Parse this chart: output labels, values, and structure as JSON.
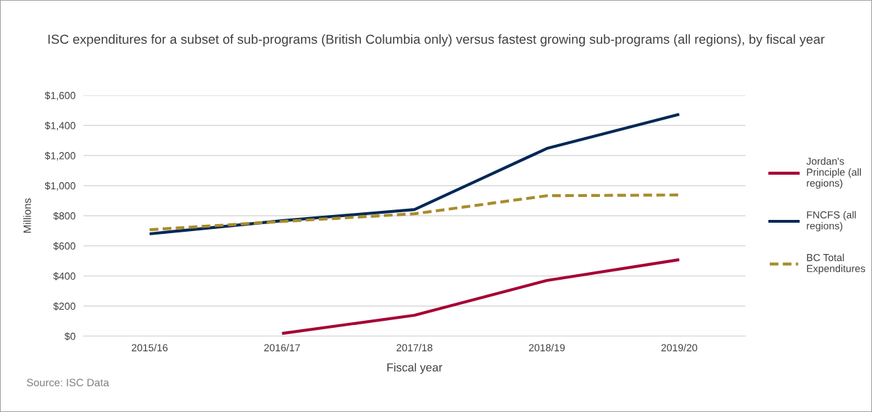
{
  "chart_data": {
    "type": "line",
    "title": "ISC expenditures for a subset of sub-programs (British Columbia only) versus fastest growing sub-programs (all regions), by fiscal year",
    "xlabel": "Fiscal year",
    "ylabel": "Millions",
    "annotations": [
      "Source: ISC Data"
    ],
    "categories": [
      "2015/16",
      "2016/17",
      "2017/18",
      "2018/19",
      "2019/20"
    ],
    "series": [
      {
        "name": "Jordan's Principle (all regions)",
        "color": "#a50034",
        "values": [
          null,
          18,
          139,
          370,
          508
        ]
      },
      {
        "name": "FNCFS (all regions)",
        "color": "#002855",
        "values": [
          680,
          767,
          841,
          1247,
          1474
        ]
      },
      {
        "name": "BC Total Expenditures",
        "color": "#a88c2c",
        "values": [
          707,
          762,
          813,
          933,
          938
        ],
        "line_style": "dashed"
      }
    ],
    "ylim": [
      0,
      1600
    ],
    "yticks": [
      {
        "value": 0,
        "label": "$0"
      },
      {
        "value": 200,
        "label": "$200"
      },
      {
        "value": 400,
        "label": "$400"
      },
      {
        "value": 600,
        "label": "$600"
      },
      {
        "value": 800,
        "label": "$800"
      },
      {
        "value": 1000,
        "label": "$1,000"
      },
      {
        "value": 1200,
        "label": "$1,200"
      },
      {
        "value": 1400,
        "label": "$1,400"
      },
      {
        "value": 1600,
        "label": "$1,600"
      }
    ],
    "grid": "y",
    "legend": "right",
    "marker": "none",
    "line_style": "solid"
  }
}
